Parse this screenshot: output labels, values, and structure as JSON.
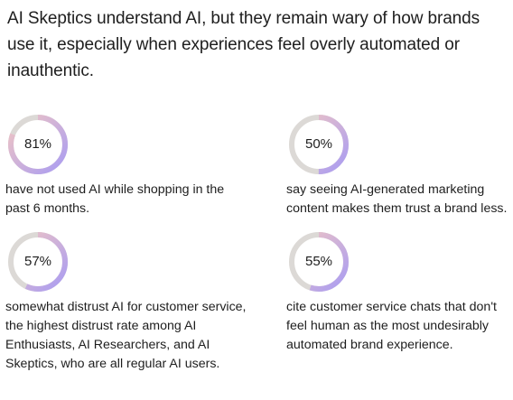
{
  "heading": "AI Skeptics understand AI, but they remain wary of how brands use it, especially when experiences feel overly automated or inauthentic.",
  "colors": {
    "track": "#dcd9d6",
    "gradient_start": "#a99cf2",
    "gradient_end": "#f2c6c2"
  },
  "chart_data": [
    {
      "type": "pie",
      "value": 81,
      "label": "81%",
      "description": "have not used AI while shopping in the past 6 months."
    },
    {
      "type": "pie",
      "value": 50,
      "label": "50%",
      "description": "say seeing AI-generated marketing content makes them trust a brand less."
    },
    {
      "type": "pie",
      "value": 57,
      "label": "57%",
      "description": "somewhat distrust AI for customer service, the highest distrust rate among AI Enthusiasts, AI Researchers, and AI Skeptics, who are all regular AI users."
    },
    {
      "type": "pie",
      "value": 55,
      "label": "55%",
      "description": "cite customer service chats that don't feel human as the most undesirably automated brand experience."
    }
  ]
}
